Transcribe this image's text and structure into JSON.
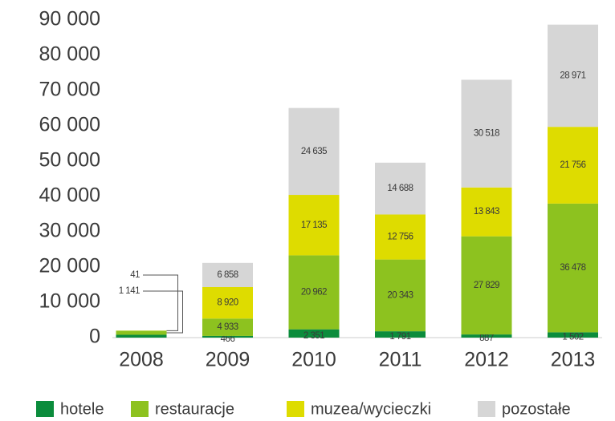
{
  "chart_data": {
    "type": "stacked_bar",
    "categories": [
      "2008",
      "2009",
      "2010",
      "2011",
      "2012",
      "2013"
    ],
    "series": [
      {
        "name": "hotele",
        "color": "#0b8c3c",
        "values": [
          800,
          466,
          2351,
          1791,
          887,
          1502
        ],
        "value_labels": [
          null,
          "466",
          "2 351",
          "1 791",
          "887",
          "1 502"
        ]
      },
      {
        "name": "restauracje",
        "color": "#8dc21f",
        "values": [
          1141,
          4933,
          20962,
          20343,
          27829,
          36478
        ],
        "value_labels": [
          "1 141",
          "4 933",
          "20 962",
          "20 343",
          "27 829",
          "36 478"
        ]
      },
      {
        "name": "muzea/wycieczki",
        "color": "#dedc00",
        "values": [
          41,
          8920,
          17135,
          12756,
          13843,
          21756
        ],
        "value_labels": [
          "41",
          "8 920",
          "17 135",
          "12 756",
          "13 843",
          "21 756"
        ]
      },
      {
        "name": "pozostałe",
        "color": "#d6d6d6",
        "values": [
          null,
          6858,
          24635,
          14688,
          30518,
          28971
        ],
        "value_labels": [
          null,
          "6 858",
          "24 635",
          "14 688",
          "30 518",
          "28 971"
        ]
      }
    ],
    "ylim": [
      0,
      90000
    ],
    "yticks": [
      0,
      {
        "value": 10000,
        "label": "10 000"
      },
      {
        "value": 20000,
        "label": "20 000"
      },
      {
        "value": 30000,
        "label": "30 000"
      },
      {
        "value": 40000,
        "label": "40 000"
      },
      {
        "value": 50000,
        "label": "50 000"
      },
      {
        "value": 60000,
        "label": "60 000"
      },
      {
        "value": 70000,
        "label": "70 000"
      },
      {
        "value": 80000,
        "label": "80 000"
      },
      {
        "value": 90000,
        "label": "90 000"
      }
    ],
    "legend": "bottom"
  }
}
